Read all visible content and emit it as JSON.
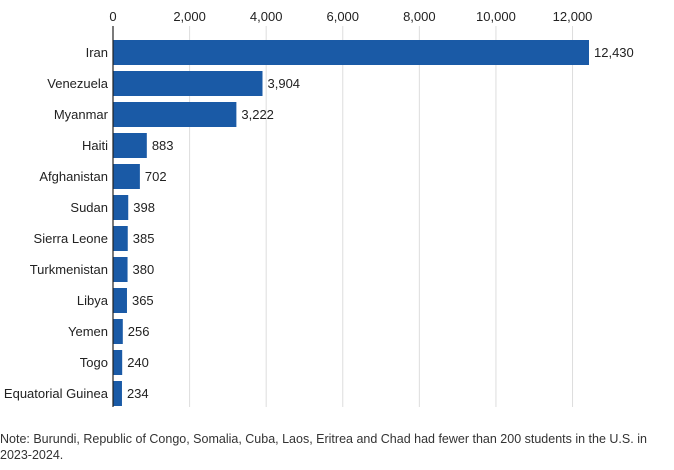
{
  "chart_data": {
    "type": "bar",
    "orientation": "horizontal",
    "categories": [
      "Iran",
      "Venezuela",
      "Myanmar",
      "Haiti",
      "Afghanistan",
      "Sudan",
      "Sierra Leone",
      "Turkmenistan",
      "Libya",
      "Yemen",
      "Togo",
      "Equatorial Guinea"
    ],
    "values": [
      12430,
      3904,
      3222,
      883,
      702,
      398,
      385,
      380,
      365,
      256,
      240,
      234
    ],
    "value_labels": [
      "12,430",
      "3,904",
      "3,222",
      "883",
      "702",
      "398",
      "385",
      "380",
      "365",
      "256",
      "240",
      "234"
    ],
    "x_ticks": [
      0,
      2000,
      4000,
      6000,
      8000,
      10000,
      12000
    ],
    "x_tick_labels": [
      "0",
      "2,000",
      "4,000",
      "6,000",
      "8,000",
      "10,000",
      "12,000"
    ],
    "xlim": [
      0,
      12430
    ],
    "axis_position": "top",
    "grid": true,
    "bar_color": "#1a5aa6",
    "grid_color": "#dddddd",
    "axis_color": "#222222"
  },
  "note": "Note: Burundi, Republic of Congo, Somalia, Cuba, Laos, Eritrea and Chad had fewer than 200 students in the U.S. in 2023-2024."
}
